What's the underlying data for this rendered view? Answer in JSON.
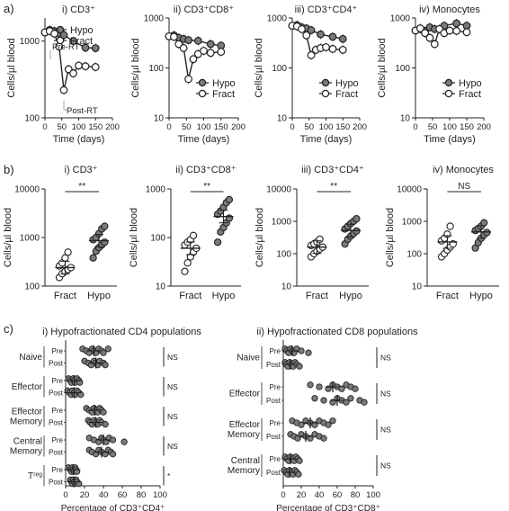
{
  "figure": {
    "panel_labels": [
      "a)",
      "b)",
      "c)"
    ],
    "yaxis_label": "Cells/µl blood",
    "time_label": "Time (days)",
    "colors": {
      "hypo": "#7a7a7a",
      "fract": "#ffffff",
      "stroke": "#222222",
      "annot": "#a0a0a0"
    }
  },
  "chart_data": [
    {
      "id": "a-i",
      "type": "line",
      "title": "i) CD3⁺",
      "xlabel": "Time (days)",
      "ylabel": "Cells/µl blood",
      "xlim": [
        0,
        200
      ],
      "xticks": [
        0,
        50,
        100,
        150,
        200
      ],
      "xtick_labels": [
        "0",
        "50",
        "100",
        "150",
        "200"
      ],
      "ylim": [
        100,
        2000
      ],
      "yscale": "log",
      "yticks": [
        100,
        1000
      ],
      "ytick_labels": [
        "100",
        "1000"
      ],
      "legend": "bottom-left",
      "annotations": [
        "Pre-RT",
        "Post-RT"
      ],
      "series": [
        {
          "name": "Hypo",
          "x": [
            0,
            14,
            28,
            42,
            56,
            84,
            120,
            150
          ],
          "y": [
            1300,
            1400,
            1350,
            1250,
            1200,
            1000,
            820,
            810
          ]
        },
        {
          "name": "Fract",
          "x": [
            0,
            14,
            28,
            42,
            56,
            70,
            84,
            100,
            120,
            150
          ],
          "y": [
            1300,
            1350,
            1250,
            850,
            230,
            430,
            380,
            480,
            470,
            460
          ]
        }
      ]
    },
    {
      "id": "a-ii",
      "type": "line",
      "title": "ii) CD3⁺CD8⁺",
      "xlabel": "Time (days)",
      "ylabel": "Cells/µl blood",
      "xlim": [
        0,
        200
      ],
      "xticks": [
        0,
        50,
        100,
        150,
        200
      ],
      "xtick_labels": [
        "0",
        "50",
        "100",
        "150",
        "200"
      ],
      "ylim": [
        10,
        1000
      ],
      "yscale": "log",
      "yticks": [
        10,
        100,
        1000
      ],
      "ytick_labels": [
        "10",
        "100",
        "1000"
      ],
      "legend": "bottom-right",
      "series": [
        {
          "name": "Hypo",
          "x": [
            0,
            14,
            28,
            42,
            56,
            84,
            120,
            150
          ],
          "y": [
            430,
            450,
            400,
            380,
            360,
            350,
            300,
            280
          ]
        },
        {
          "name": "Fract",
          "x": [
            0,
            14,
            28,
            42,
            56,
            70,
            84,
            100,
            120,
            150
          ],
          "y": [
            430,
            420,
            300,
            250,
            60,
            150,
            190,
            220,
            200,
            210
          ]
        }
      ]
    },
    {
      "id": "a-iii",
      "type": "line",
      "title": "iii) CD3⁺CD4⁺",
      "xlabel": "Time (days)",
      "ylabel": "Cells/µl blood",
      "xlim": [
        0,
        200
      ],
      "xticks": [
        0,
        50,
        100,
        150,
        200
      ],
      "xtick_labels": [
        "0",
        "50",
        "100",
        "150",
        "200"
      ],
      "ylim": [
        10,
        1000
      ],
      "yscale": "log",
      "yticks": [
        10,
        100,
        1000
      ],
      "ytick_labels": [
        "10",
        "100",
        "1000"
      ],
      "legend": "bottom-right",
      "series": [
        {
          "name": "Hypo",
          "x": [
            0,
            14,
            28,
            42,
            56,
            84,
            120,
            150
          ],
          "y": [
            700,
            720,
            650,
            620,
            570,
            470,
            420,
            380
          ]
        },
        {
          "name": "Fract",
          "x": [
            0,
            14,
            28,
            42,
            56,
            70,
            84,
            100,
            120,
            150
          ],
          "y": [
            700,
            680,
            600,
            450,
            180,
            230,
            250,
            260,
            240,
            230
          ]
        }
      ]
    },
    {
      "id": "a-iv",
      "type": "line",
      "title": "iv) Monocytes",
      "xlabel": "Time (days)",
      "ylabel": "Cells/µl blood",
      "xlim": [
        0,
        200
      ],
      "xticks": [
        0,
        50,
        100,
        150,
        200
      ],
      "xtick_labels": [
        "0",
        "50",
        "100",
        "150",
        "200"
      ],
      "ylim": [
        10,
        1000
      ],
      "yscale": "log",
      "yticks": [
        10,
        100,
        1000
      ],
      "ytick_labels": [
        "10",
        "100",
        "1000"
      ],
      "legend": "bottom-right",
      "series": [
        {
          "name": "Hypo",
          "x": [
            0,
            14,
            28,
            42,
            56,
            84,
            120,
            150
          ],
          "y": [
            560,
            600,
            550,
            650,
            600,
            700,
            780,
            700
          ]
        },
        {
          "name": "Fract",
          "x": [
            0,
            14,
            28,
            42,
            56,
            70,
            84,
            100,
            120,
            150
          ],
          "y": [
            560,
            620,
            500,
            400,
            300,
            600,
            500,
            560,
            550,
            520
          ]
        }
      ]
    },
    {
      "id": "b-i",
      "type": "scatter",
      "title": "i) CD3⁺",
      "ylabel": "Cells/µl blood",
      "categories": [
        "Fract",
        "Hypo"
      ],
      "yscale": "log",
      "ylim": [
        100,
        10000
      ],
      "yticks": [
        100,
        1000,
        10000
      ],
      "ytick_labels": [
        "100",
        "1000",
        "10000"
      ],
      "significance": "**",
      "series": [
        {
          "name": "Fract",
          "values": [
            150,
            180,
            200,
            220,
            240,
            260,
            300,
            380,
            500
          ],
          "mean": 240
        },
        {
          "name": "Hypo",
          "values": [
            380,
            520,
            620,
            700,
            800,
            900,
            1000,
            1200,
            1500,
            1700
          ],
          "mean": 860
        }
      ]
    },
    {
      "id": "b-ii",
      "type": "scatter",
      "title": "ii) CD3⁺CD8⁺",
      "ylabel": "Cells/µl blood",
      "categories": [
        "Fract",
        "Hypo"
      ],
      "yscale": "log",
      "ylim": [
        10,
        1000
      ],
      "yticks": [
        10,
        100,
        1000
      ],
      "ytick_labels": [
        "10",
        "100",
        "1000"
      ],
      "significance": "**",
      "series": [
        {
          "name": "Fract",
          "values": [
            20,
            30,
            40,
            50,
            60,
            70,
            80,
            90,
            110
          ],
          "mean": 60
        },
        {
          "name": "Hypo",
          "values": [
            80,
            130,
            160,
            200,
            250,
            300,
            350,
            420,
            520,
            600
          ],
          "mean": 270
        }
      ]
    },
    {
      "id": "b-iii",
      "type": "scatter",
      "title": "iii) CD3⁺CD4⁺",
      "ylabel": "Cells/µl blood",
      "categories": [
        "Fract",
        "Hypo"
      ],
      "yscale": "log",
      "ylim": [
        10,
        10000
      ],
      "yticks": [
        10,
        100,
        1000,
        10000
      ],
      "ytick_labels": [
        "10",
        "100",
        "1000",
        "10000"
      ],
      "significance": "**",
      "series": [
        {
          "name": "Fract",
          "values": [
            80,
            100,
            120,
            140,
            160,
            180,
            200,
            230,
            280
          ],
          "mean": 160
        },
        {
          "name": "Hypo",
          "values": [
            200,
            280,
            350,
            420,
            500,
            580,
            700,
            850,
            1000,
            1200
          ],
          "mean": 520
        }
      ]
    },
    {
      "id": "b-iv",
      "type": "scatter",
      "title": "iv) Monocytes",
      "ylabel": "Cells/µl blood",
      "categories": [
        "Fract",
        "Hypo"
      ],
      "yscale": "log",
      "ylim": [
        10,
        10000
      ],
      "yticks": [
        10,
        100,
        1000,
        10000
      ],
      "ytick_labels": [
        "10",
        "100",
        "1000",
        "10000"
      ],
      "significance": "NS",
      "series": [
        {
          "name": "Fract",
          "values": [
            80,
            100,
            130,
            160,
            200,
            250,
            300,
            400,
            700
          ],
          "mean": 230
        },
        {
          "name": "Hypo",
          "values": [
            150,
            220,
            300,
            380,
            450,
            520,
            600,
            700,
            900
          ],
          "mean": 470
        }
      ]
    },
    {
      "id": "c-i",
      "type": "scatter",
      "orientation": "horizontal",
      "title": "i) Hypofractionated CD4 populations",
      "xlabel": "Percentage of CD3⁺CD4⁺",
      "xlim": [
        0,
        100
      ],
      "xticks": [
        0,
        20,
        40,
        60,
        80,
        100
      ],
      "xtick_labels": [
        "0",
        "20",
        "40",
        "60",
        "80",
        "100"
      ],
      "groups": [
        "Naive",
        "Effector",
        "Effector Memory",
        "Central Memory",
        "Tʳᵉᵍ"
      ],
      "rows": [
        {
          "group": "Naive",
          "label": "Pre",
          "values": [
            18,
            22,
            25,
            28,
            30,
            32,
            35,
            38,
            40,
            45
          ],
          "mean": 30
        },
        {
          "group": "Naive",
          "label": "Post",
          "values": [
            20,
            24,
            27,
            30,
            32,
            34,
            36,
            40,
            42
          ],
          "mean": 32
        },
        {
          "group": "Effector",
          "label": "Pre",
          "values": [
            3,
            5,
            6,
            8,
            9,
            10,
            12,
            14,
            15
          ],
          "mean": 9
        },
        {
          "group": "Effector",
          "label": "Post",
          "values": [
            2,
            4,
            6,
            7,
            9,
            10,
            12,
            14,
            16
          ],
          "mean": 9
        },
        {
          "group": "Effector Memory",
          "label": "Pre",
          "values": [
            22,
            25,
            28,
            30,
            32,
            34,
            36,
            38,
            40
          ],
          "mean": 31
        },
        {
          "group": "Effector Memory",
          "label": "Post",
          "values": [
            24,
            26,
            28,
            30,
            32,
            34,
            36,
            38,
            42
          ],
          "mean": 32
        },
        {
          "group": "Central Memory",
          "label": "Pre",
          "values": [
            25,
            30,
            35,
            38,
            40,
            43,
            46,
            50,
            62
          ],
          "mean": 40
        },
        {
          "group": "Central Memory",
          "label": "Post",
          "values": [
            25,
            28,
            32,
            35,
            38,
            42,
            45,
            48,
            50
          ],
          "mean": 38
        },
        {
          "group": "Tʳᵉᵍ",
          "label": "Pre",
          "values": [
            3,
            5,
            6,
            7,
            8,
            9,
            10,
            11,
            12
          ],
          "mean": 8
        },
        {
          "group": "Tʳᵉᵍ",
          "label": "Post",
          "values": [
            5,
            6,
            7,
            8,
            9,
            10,
            11,
            12,
            14
          ],
          "mean": 9
        }
      ],
      "significance": [
        "NS",
        "NS",
        "NS",
        "NS",
        "*"
      ]
    },
    {
      "id": "c-ii",
      "type": "scatter",
      "orientation": "horizontal",
      "title": "ii) Hypofractionated CD8 populations",
      "xlabel": "Percentage of CD3⁺CD8⁺",
      "xlim": [
        0,
        100
      ],
      "xticks": [
        0,
        20,
        40,
        60,
        80,
        100
      ],
      "xtick_labels": [
        "0",
        "20",
        "40",
        "60",
        "80",
        "100"
      ],
      "groups": [
        "Naive",
        "Effector",
        "Effector Memory",
        "Central Memory"
      ],
      "rows": [
        {
          "group": "Naive",
          "label": "Pre",
          "values": [
            2,
            4,
            6,
            8,
            10,
            12,
            15,
            20,
            28
          ],
          "mean": 10
        },
        {
          "group": "Naive",
          "label": "Post",
          "values": [
            2,
            3,
            5,
            7,
            9,
            11,
            13,
            15,
            18
          ],
          "mean": 8
        },
        {
          "group": "Effector",
          "label": "Pre",
          "values": [
            30,
            40,
            50,
            55,
            60,
            65,
            70,
            75,
            80
          ],
          "mean": 55
        },
        {
          "group": "Effector",
          "label": "Post",
          "values": [
            35,
            45,
            55,
            60,
            65,
            70,
            75,
            85,
            90
          ],
          "mean": 60
        },
        {
          "group": "Effector Memory",
          "label": "Pre",
          "values": [
            10,
            15,
            20,
            25,
            30,
            35,
            40,
            45,
            50,
            55
          ],
          "mean": 30
        },
        {
          "group": "Effector Memory",
          "label": "Post",
          "values": [
            8,
            12,
            16,
            20,
            25,
            30,
            35,
            40,
            45
          ],
          "mean": 25
        },
        {
          "group": "Central Memory",
          "label": "Pre",
          "values": [
            2,
            4,
            6,
            8,
            10,
            12,
            14,
            16,
            18
          ],
          "mean": 8
        },
        {
          "group": "Central Memory",
          "label": "Post",
          "values": [
            1,
            3,
            5,
            7,
            9,
            11,
            13,
            15,
            17
          ],
          "mean": 7
        }
      ],
      "significance": [
        "NS",
        "NS",
        "NS",
        "NS"
      ]
    }
  ]
}
